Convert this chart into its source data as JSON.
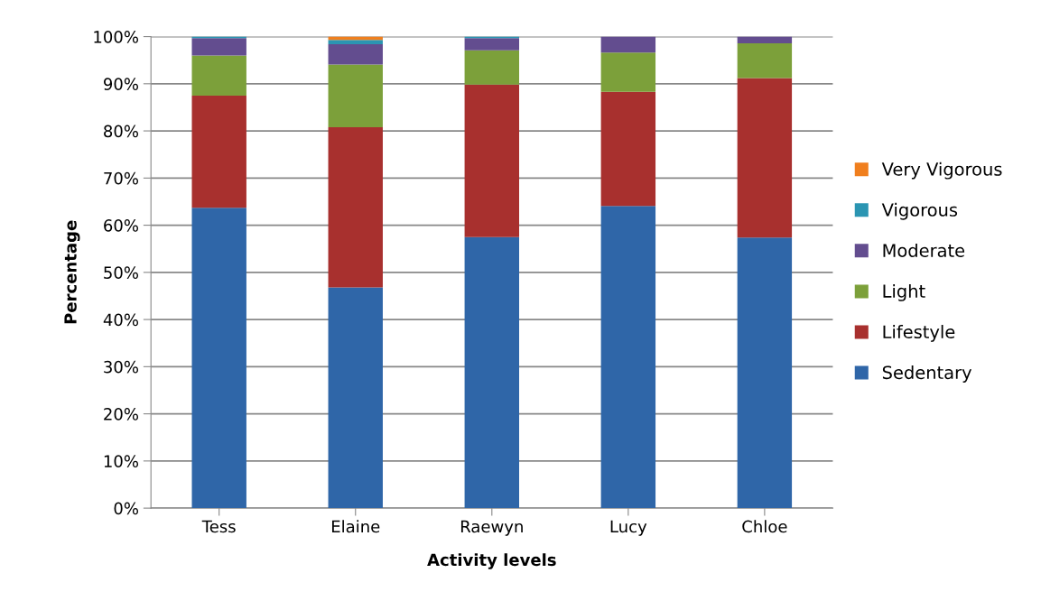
{
  "chart_data": {
    "type": "bar",
    "stacked": true,
    "xlabel": "Activity levels",
    "ylabel": "Percentage",
    "categories": [
      "Tess",
      "Elaine",
      "Raewyn",
      "Lucy",
      "Chloe"
    ],
    "series": [
      {
        "name": "Sedentary",
        "color": "#2f66a8",
        "values": [
          63.7,
          46.8,
          57.5,
          64.1,
          57.4
        ]
      },
      {
        "name": "Lifestyle",
        "color": "#a8302e",
        "values": [
          23.8,
          34.0,
          32.3,
          24.2,
          33.8
        ]
      },
      {
        "name": "Light",
        "color": "#7ca03a",
        "values": [
          8.5,
          13.3,
          7.3,
          8.3,
          7.4
        ]
      },
      {
        "name": "Moderate",
        "color": "#634d8f",
        "values": [
          3.7,
          4.3,
          2.6,
          3.4,
          1.4
        ]
      },
      {
        "name": "Vigorous",
        "color": "#2b95b2",
        "values": [
          0.3,
          0.9,
          0.3,
          0,
          0
        ]
      },
      {
        "name": "Very Vigorous",
        "color": "#f07f1e",
        "values": [
          0,
          0.7,
          0,
          0,
          0
        ]
      }
    ],
    "ylim": [
      0,
      100
    ],
    "yticks": [
      {
        "value": 0,
        "label": "0%"
      },
      {
        "value": 10,
        "label": "10%"
      },
      {
        "value": 20,
        "label": "20%"
      },
      {
        "value": 30,
        "label": "30%"
      },
      {
        "value": 40,
        "label": "40%"
      },
      {
        "value": 50,
        "label": "50%"
      },
      {
        "value": 60,
        "label": "60%"
      },
      {
        "value": 70,
        "label": "70%"
      },
      {
        "value": 80,
        "label": "80%"
      },
      {
        "value": 90,
        "label": "90%"
      },
      {
        "value": 100,
        "label": "100%"
      }
    ],
    "grid": "y",
    "legend": "right"
  }
}
